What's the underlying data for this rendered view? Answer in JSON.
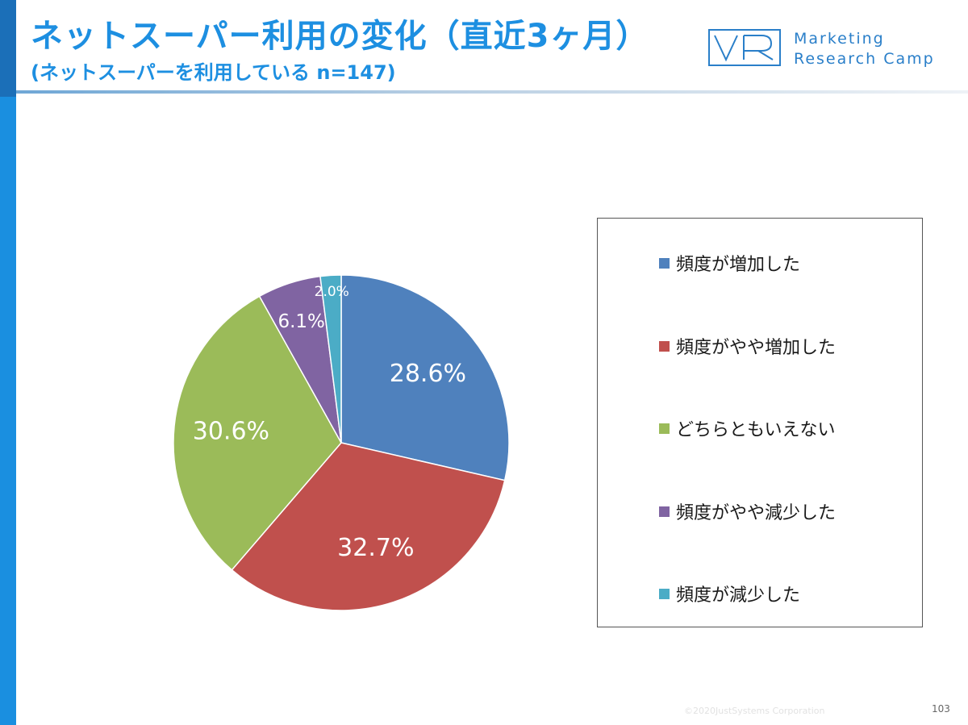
{
  "header": {
    "title": "ネットスーパー利用の変化（直近3ヶ月）",
    "subtitle": "(ネットスーパーを利用している n=147)"
  },
  "brand": {
    "line1": "Marketing",
    "line2": "Research Camp"
  },
  "footer": {
    "copyright": "©2020JustSystems Corporation",
    "page_number": "103"
  },
  "colors": {
    "accent": "#1d8fe1",
    "left_bar": "#1a8fe0"
  },
  "chart_data": {
    "type": "pie",
    "title": "",
    "categories": [
      "頻度が増加した",
      "頻度がやや増加した",
      "どちらともいえない",
      "頻度がやや減少した",
      "頻度が減少した"
    ],
    "values": [
      28.6,
      32.7,
      30.6,
      6.1,
      2.0
    ],
    "labels": [
      "28.6%",
      "32.7%",
      "30.6%",
      "6.1%",
      "2.0%"
    ],
    "colors": [
      "#4f81bd",
      "#c0504d",
      "#9bbb59",
      "#8064a2",
      "#4bacc6"
    ],
    "start_angle_deg": 0,
    "direction": "clockwise",
    "legend_position": "right"
  }
}
